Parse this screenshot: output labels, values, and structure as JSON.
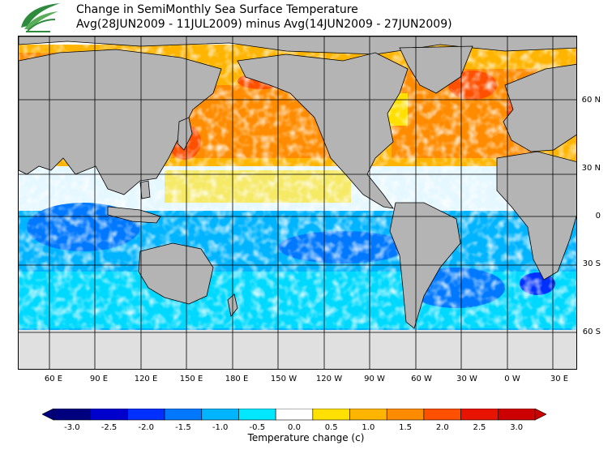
{
  "header": {
    "title": "Change in SemiMonthly Sea Surface Temperature",
    "subtitle": "Avg(28JUN2009 - 11JUL2009) minus Avg(14JUN2009 - 27JUN2009)"
  },
  "logo": {
    "icon": "leaf-swirl-logo-icon",
    "color": "#2e8b3e"
  },
  "map": {
    "land_color": "#b4b4b4",
    "ice_color": "#e0e0e0",
    "ocean_blank_color": "#ffffff",
    "lat_labels": [
      "60 N",
      "30 N",
      "0",
      "30 S",
      "60 S"
    ],
    "lon_labels": [
      "60 E",
      "90 E",
      "120 E",
      "150 E",
      "180 E",
      "150 W",
      "120 W",
      "90 W",
      "60 W",
      "30 W",
      "0 W",
      "30 E"
    ]
  },
  "colorbar": {
    "colors": [
      "#00007f",
      "#0000cd",
      "#0030ff",
      "#0078ff",
      "#00b4ff",
      "#00e8ff",
      "#ffffff",
      "#ffe000",
      "#ffb400",
      "#ff8c00",
      "#ff5000",
      "#e81400",
      "#cc0000"
    ],
    "ticks": [
      "-3.0",
      "-2.5",
      "-2.0",
      "-1.5",
      "-1.0",
      "-0.5",
      "0.0",
      "0.5",
      "1.0",
      "1.5",
      "2.0",
      "2.5",
      "3.0"
    ],
    "title": "Temperature change  (c)"
  }
}
